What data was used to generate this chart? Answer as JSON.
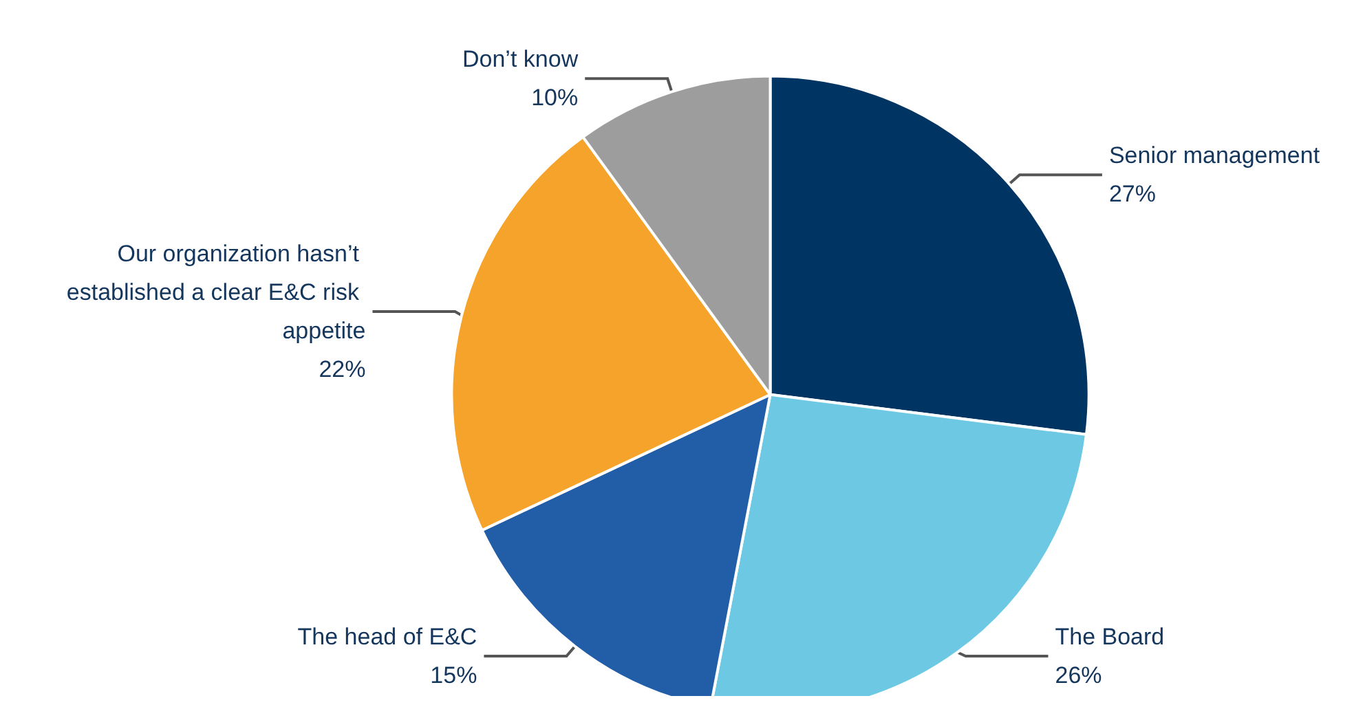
{
  "chart_data": {
    "type": "pie",
    "categories": [
      "Senior management",
      "The Board",
      "The head of E&C",
      "Our organization hasn’t established a clear E&C risk appetite",
      "Don’t know"
    ],
    "values": [
      27,
      26,
      15,
      22,
      10
    ],
    "colors": [
      "#003462",
      "#6dc9e3",
      "#225ea8",
      "#f5a32a",
      "#9d9d9d"
    ],
    "value_labels": [
      "27%",
      "26%",
      "15%",
      "22%",
      "10%"
    ],
    "legend": false
  }
}
